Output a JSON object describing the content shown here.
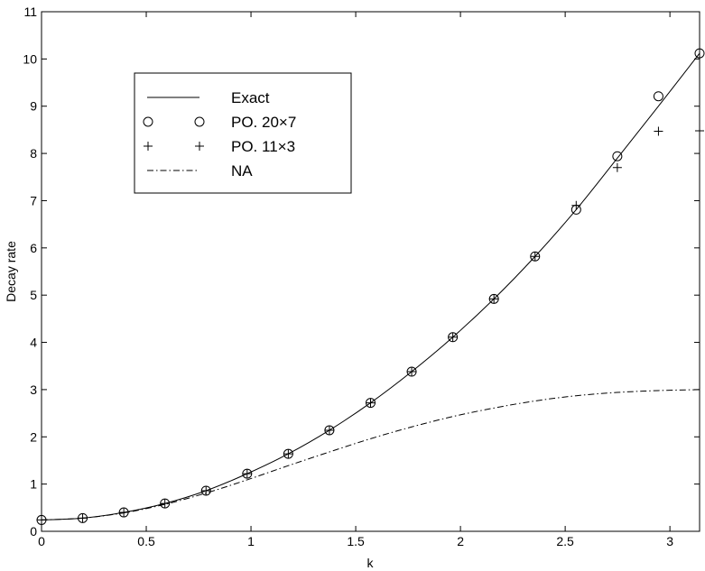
{
  "chart_data": {
    "type": "line",
    "xlabel": "k",
    "ylabel": "Decay rate",
    "xlim": [
      0,
      3.1416
    ],
    "ylim": [
      0,
      11
    ],
    "x_ticks": [
      "0",
      "0.5",
      "1",
      "1.5",
      "2",
      "2.5",
      "3"
    ],
    "y_ticks": [
      "0",
      "1",
      "2",
      "3",
      "4",
      "5",
      "6",
      "7",
      "8",
      "9",
      "10",
      "11"
    ],
    "grid": false,
    "legend_position": "upper-left",
    "series": [
      {
        "name": "Exact",
        "style": "solid-line",
        "x": [
          0,
          0.1963,
          0.3927,
          0.589,
          0.7854,
          0.9817,
          1.1781,
          1.3744,
          1.5708,
          1.7671,
          1.9635,
          2.1598,
          2.3562,
          2.5525,
          2.7489,
          2.9452,
          3.1416
        ],
        "y": [
          0.24,
          0.28,
          0.4,
          0.59,
          0.86,
          1.22,
          1.64,
          2.14,
          2.72,
          3.38,
          4.11,
          4.92,
          5.82,
          6.81,
          7.9,
          9.0,
          10.12
        ]
      },
      {
        "name": "PO. 20×7",
        "style": "circle-markers",
        "x": [
          0,
          0.1963,
          0.3927,
          0.589,
          0.7854,
          0.9817,
          1.1781,
          1.3744,
          1.5708,
          1.7671,
          1.9635,
          2.1598,
          2.3562,
          2.5525,
          2.7489,
          2.9452,
          3.1416
        ],
        "y": [
          0.24,
          0.28,
          0.4,
          0.59,
          0.86,
          1.22,
          1.64,
          2.14,
          2.72,
          3.38,
          4.11,
          4.92,
          5.82,
          6.81,
          7.94,
          9.21,
          10.12
        ]
      },
      {
        "name": "PO. 11×3",
        "style": "plus-markers",
        "x": [
          0,
          0.1963,
          0.3927,
          0.589,
          0.7854,
          0.9817,
          1.1781,
          1.3744,
          1.5708,
          1.7671,
          1.9635,
          2.1598,
          2.3562,
          2.5525,
          2.7489,
          2.9452,
          3.1416
        ],
        "y": [
          0.24,
          0.28,
          0.4,
          0.59,
          0.86,
          1.22,
          1.64,
          2.14,
          2.72,
          3.38,
          4.11,
          4.92,
          5.82,
          6.9,
          7.7,
          8.47,
          8.48
        ]
      },
      {
        "name": "NA",
        "style": "dash-dot-line",
        "x": [
          0,
          0.1963,
          0.3927,
          0.589,
          0.7854,
          0.9817,
          1.1781,
          1.3744,
          1.5708,
          1.7671,
          1.9635,
          2.1598,
          2.3562,
          2.5525,
          2.7489,
          2.9452,
          3.1416
        ],
        "y": [
          0.24,
          0.28,
          0.39,
          0.57,
          0.81,
          1.09,
          1.39,
          1.68,
          1.96,
          2.21,
          2.43,
          2.61,
          2.76,
          2.87,
          2.94,
          2.98,
          3.0
        ]
      }
    ]
  }
}
